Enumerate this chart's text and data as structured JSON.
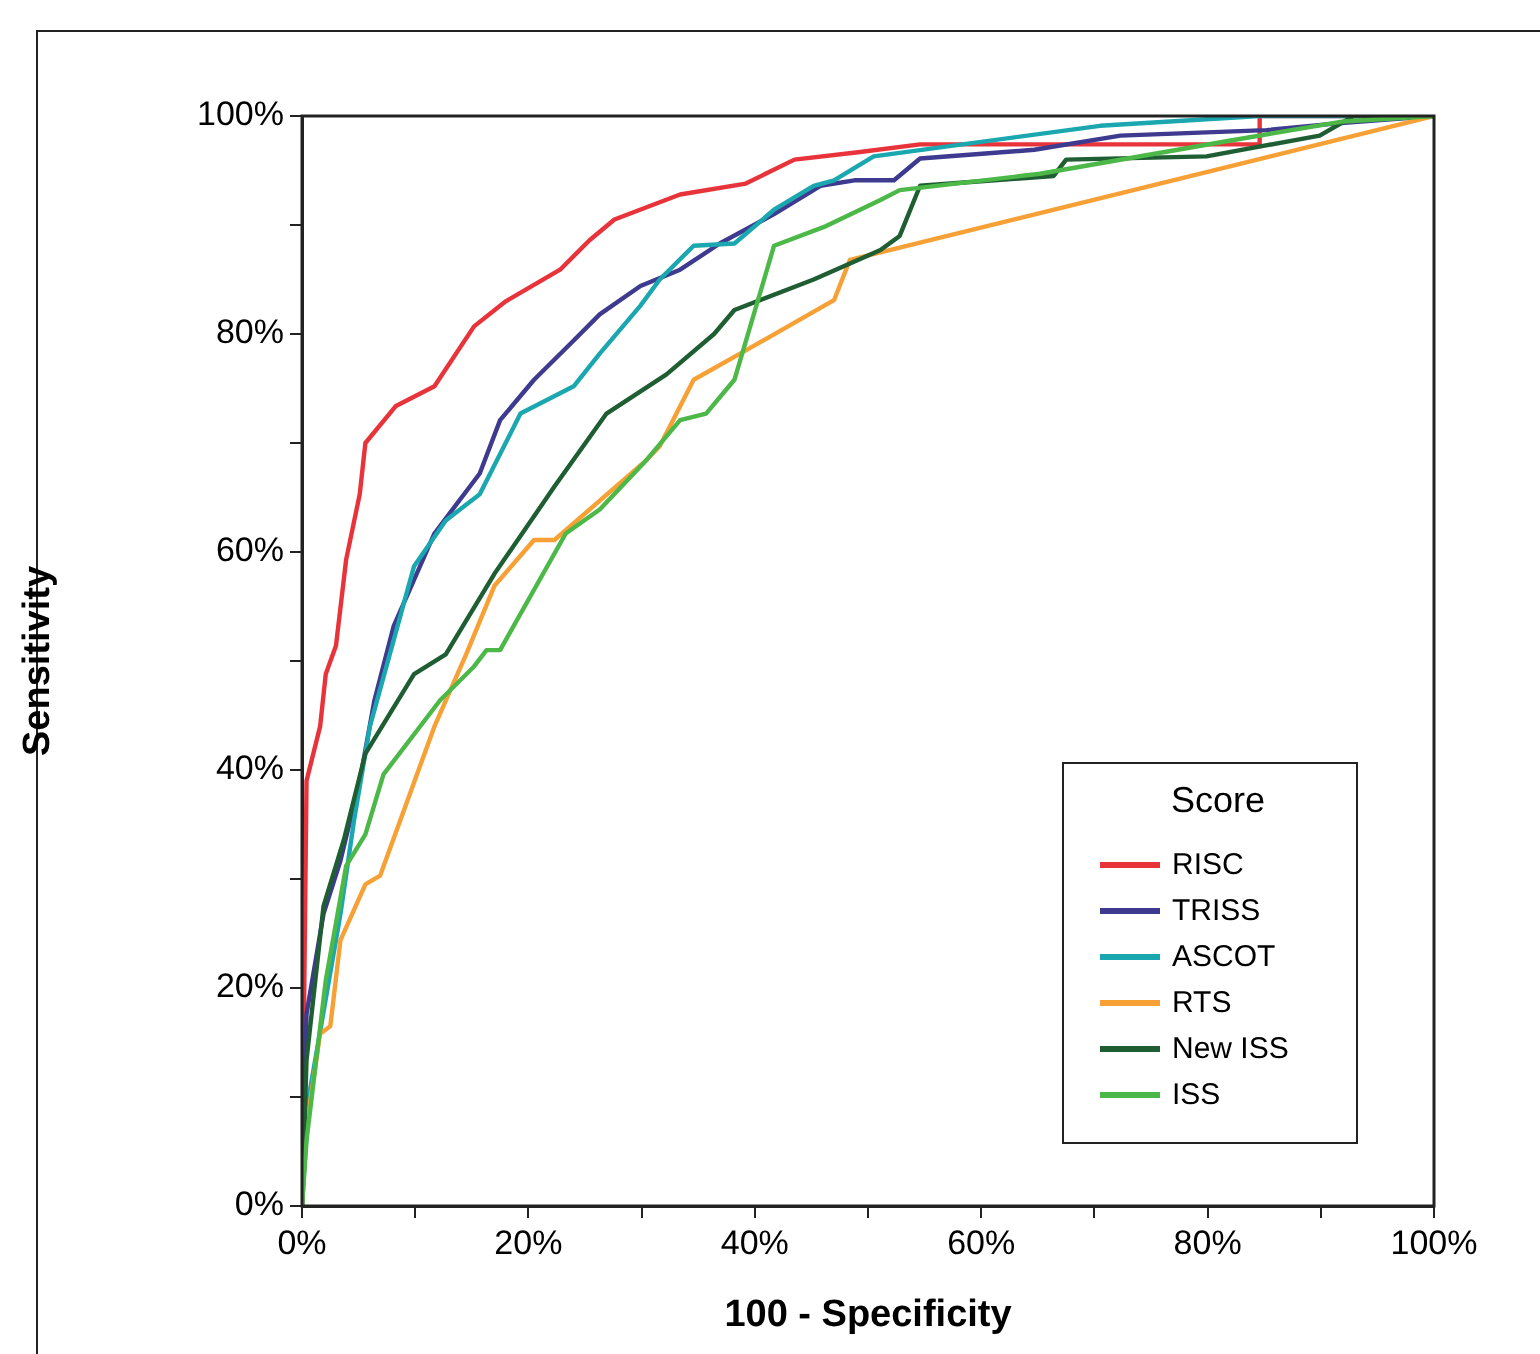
{
  "chart_data": {
    "type": "line",
    "xlabel": "100 - Specificity",
    "ylabel": "Sensitivity",
    "legend_title": "Score",
    "legend": "bottom right",
    "grid": false,
    "xlim": [
      0,
      100
    ],
    "ylim": [
      0,
      100
    ],
    "xticks": [
      {
        "value": 0,
        "label": "0%"
      },
      {
        "value": 10,
        "label": null
      },
      {
        "value": 20,
        "label": "20%"
      },
      {
        "value": 30,
        "label": null
      },
      {
        "value": 40,
        "label": "40%"
      },
      {
        "value": 50,
        "label": null
      },
      {
        "value": 60,
        "label": "60%"
      },
      {
        "value": 70,
        "label": null
      },
      {
        "value": 80,
        "label": "80%"
      },
      {
        "value": 90,
        "label": null
      },
      {
        "value": 100,
        "label": "100%"
      }
    ],
    "yticks": [
      {
        "value": 0,
        "label": "0%"
      },
      {
        "value": 10,
        "label": null
      },
      {
        "value": 20,
        "label": "20%"
      },
      {
        "value": 30,
        "label": null
      },
      {
        "value": 40,
        "label": "40%"
      },
      {
        "value": 50,
        "label": null
      },
      {
        "value": 60,
        "label": "60%"
      },
      {
        "value": 70,
        "label": null
      },
      {
        "value": 80,
        "label": "80%"
      },
      {
        "value": 90,
        "label": null
      },
      {
        "value": 100,
        "label": "100%"
      }
    ],
    "series": [
      {
        "name": "RISC",
        "color": "#e8333a",
        "x": [
          0,
          0.2,
          0.4,
          1.6,
          2.1,
          3,
          3.9,
          5.1,
          5.6,
          8.3,
          11.7,
          15.2,
          18,
          22.8,
          25.4,
          27.6,
          33.4,
          39.2,
          43.5,
          49.3,
          54.6,
          84.6,
          84.6,
          100
        ],
        "values": [
          0,
          20,
          39,
          44,
          48.8,
          51.4,
          59.3,
          65.3,
          70,
          73.4,
          75.2,
          80.7,
          83,
          85.9,
          88.6,
          90.5,
          92.8,
          93.8,
          96,
          96.7,
          97.4,
          97.4,
          100,
          100
        ]
      },
      {
        "name": "TRISS",
        "color": "#3d3a8f",
        "x": [
          0,
          0.4,
          1.9,
          3.4,
          5.1,
          6.4,
          8.1,
          11.7,
          15.7,
          17.5,
          20.5,
          24,
          26.3,
          29.9,
          33.4,
          36.9,
          41.7,
          45.8,
          48.8,
          52.3,
          54.6,
          64.7,
          72.3,
          85.2,
          91.2,
          100
        ],
        "values": [
          0,
          17.6,
          26.8,
          31.7,
          39,
          46.4,
          53.2,
          61.7,
          67.2,
          72.1,
          75.8,
          79.4,
          81.8,
          84.4,
          85.9,
          88.3,
          91,
          93.6,
          94.1,
          94.1,
          96.1,
          96.9,
          98.2,
          98.7,
          99.3,
          100
        ]
      },
      {
        "name": "ASCOT",
        "color": "#1aa7b0",
        "x": [
          0,
          0.6,
          3.4,
          4.6,
          6,
          9.9,
          12.7,
          15.7,
          19.3,
          24,
          26.3,
          29.9,
          31.6,
          34.6,
          38.2,
          41.7,
          45.2,
          47,
          50.5,
          70.5,
          84.6,
          100
        ],
        "values": [
          0,
          10,
          26.8,
          35.4,
          44,
          58.7,
          62.9,
          65.3,
          72.7,
          75.2,
          78.2,
          82.6,
          85,
          88.1,
          88.3,
          91.4,
          93.6,
          94.1,
          96.3,
          99.1,
          100,
          100
        ]
      },
      {
        "name": "RTS",
        "color": "#f7a035",
        "x": [
          0,
          0.4,
          1.6,
          2.5,
          3.4,
          5.6,
          6.9,
          11.7,
          14.5,
          17,
          20.5,
          22.3,
          30.4,
          31.6,
          34.6,
          38.7,
          47,
          48.4,
          100
        ],
        "values": [
          0,
          7.3,
          15.8,
          16.5,
          24.4,
          29.5,
          30.3,
          44,
          50.6,
          56.9,
          61.1,
          61.1,
          68.4,
          69.7,
          75.8,
          78.2,
          83.1,
          86.8,
          100
        ]
      },
      {
        "name": "New ISS",
        "color": "#1e5e32",
        "x": [
          0,
          0.4,
          1.9,
          3.7,
          5.6,
          9.9,
          12.7,
          17,
          22.3,
          26.9,
          32.2,
          36.4,
          38.2,
          45.2,
          51.1,
          52.8,
          54.6,
          66.4,
          67.5,
          79.9,
          89.9,
          92.9,
          100
        ],
        "values": [
          0,
          13.4,
          27.5,
          33.6,
          41.5,
          48.8,
          50.6,
          58,
          66,
          72.7,
          76.3,
          80,
          82.2,
          85,
          87.7,
          89,
          93.6,
          94.5,
          96,
          96.3,
          98.2,
          100,
          100
        ]
      },
      {
        "name": "ISS",
        "color": "#4cb848",
        "x": [
          0,
          0.4,
          2.1,
          3.9,
          5.6,
          7.2,
          12.2,
          15.2,
          16.3,
          17.5,
          23.3,
          26.3,
          30.4,
          33.4,
          35.7,
          38.2,
          41.7,
          46.3,
          51.1,
          52.8,
          65.2,
          82.3,
          92,
          100
        ],
        "values": [
          0,
          6,
          20.7,
          31.2,
          34.1,
          39.6,
          46.4,
          49.5,
          51,
          51,
          61.7,
          63.9,
          68.4,
          72.1,
          72.7,
          75.8,
          88.1,
          89.9,
          92.3,
          93.2,
          94.7,
          97.8,
          99.5,
          100
        ]
      }
    ]
  }
}
